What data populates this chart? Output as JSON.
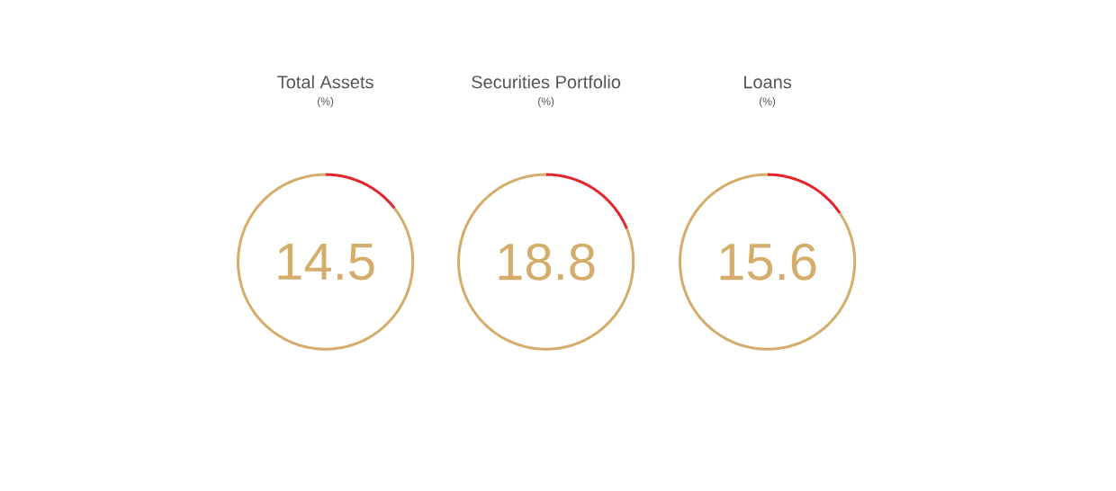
{
  "chart_data": [
    {
      "type": "donut",
      "title": "Total Assets",
      "subtitle": "(%)",
      "categories": [
        null,
        null
      ],
      "values": [
        14.5,
        85.5
      ],
      "colors": [
        "#e3262b",
        "#d4ad6a"
      ],
      "annotations": [
        "14.5"
      ]
    },
    {
      "type": "donut",
      "title": "Securities Portfolio",
      "subtitle": "(%)",
      "categories": [
        null,
        null
      ],
      "values": [
        18.8,
        81.2
      ],
      "colors": [
        "#e3262b",
        "#d4ad6a"
      ],
      "annotations": [
        "18.8"
      ]
    },
    {
      "type": "donut",
      "title": "Loans",
      "subtitle": "(%)",
      "categories": [
        null,
        null
      ],
      "values": [
        15.6,
        84.4
      ],
      "colors": [
        "#e3262b",
        "#d4ad6a"
      ],
      "annotations": [
        "15.6"
      ]
    }
  ]
}
